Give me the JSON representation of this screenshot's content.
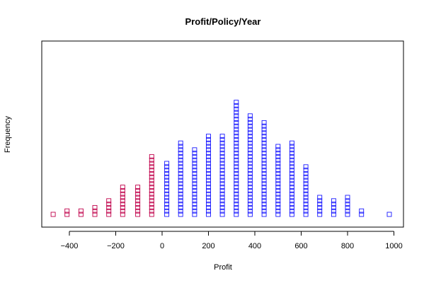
{
  "chart_data": {
    "type": "bar",
    "style": "stacked-square-dot-plot",
    "title": "Profit/Policy/Year",
    "xlabel": "Profit",
    "ylabel": "Frequency",
    "xlim": [
      -510,
      1000
    ],
    "x_ticks": [
      -400,
      -200,
      0,
      200,
      400,
      600,
      800,
      1000
    ],
    "x_tick_labels": [
      "−400",
      "−200",
      "0",
      "200",
      "400",
      "600",
      "800",
      "1000"
    ],
    "grid": false,
    "legend": "none",
    "colors": {
      "negative": "#c0004a",
      "positive": "#1a1aff"
    },
    "series": [
      {
        "values": [
          {
            "x": -470,
            "count": 1
          },
          {
            "x": -410,
            "count": 2
          },
          {
            "x": -350,
            "count": 2
          },
          {
            "x": -290,
            "count": 3
          },
          {
            "x": -230,
            "count": 5
          },
          {
            "x": -170,
            "count": 9
          },
          {
            "x": -105,
            "count": 9
          },
          {
            "x": -45,
            "count": 18
          }
        ]
      },
      {
        "values": [
          {
            "x": 20,
            "count": 16
          },
          {
            "x": 80,
            "count": 22
          },
          {
            "x": 140,
            "count": 20
          },
          {
            "x": 200,
            "count": 24
          },
          {
            "x": 260,
            "count": 24
          },
          {
            "x": 320,
            "count": 34
          },
          {
            "x": 380,
            "count": 30
          },
          {
            "x": 440,
            "count": 28
          },
          {
            "x": 500,
            "count": 21
          },
          {
            "x": 560,
            "count": 22
          },
          {
            "x": 620,
            "count": 15
          },
          {
            "x": 680,
            "count": 6
          },
          {
            "x": 740,
            "count": 5
          },
          {
            "x": 800,
            "count": 6
          },
          {
            "x": 860,
            "count": 2
          },
          {
            "x": 980,
            "count": 1
          }
        ]
      }
    ]
  }
}
